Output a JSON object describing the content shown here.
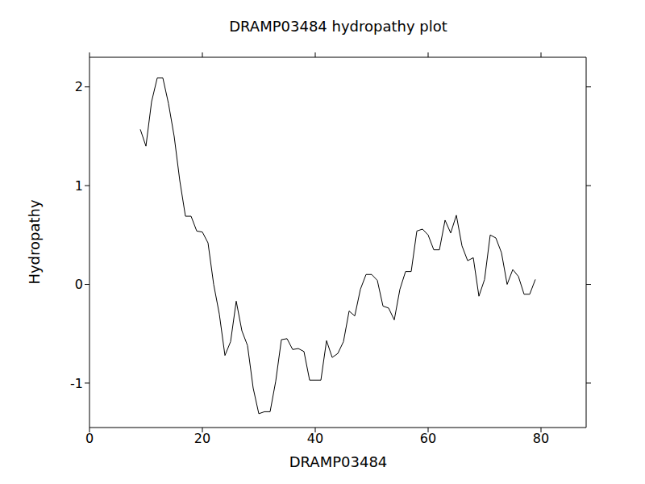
{
  "chart_data": {
    "type": "line",
    "title": "DRAMP03484 hydropathy plot",
    "xlabel": "DRAMP03484",
    "ylabel": "Hydropathy",
    "x": [
      9,
      10,
      11,
      12,
      13,
      14,
      15,
      16,
      17,
      18,
      19,
      20,
      21,
      22,
      23,
      24,
      25,
      26,
      27,
      28,
      29,
      30,
      31,
      32,
      33,
      34,
      35,
      36,
      37,
      38,
      39,
      40,
      41,
      42,
      43,
      44,
      45,
      46,
      47,
      48,
      49,
      50,
      51,
      52,
      53,
      54,
      55,
      56,
      57,
      58,
      59,
      60,
      61,
      62,
      63,
      64,
      65,
      66,
      67,
      68,
      69,
      70,
      71,
      72,
      73,
      74,
      75,
      76,
      77,
      78,
      79
    ],
    "values": [
      1.57,
      1.4,
      1.85,
      2.09,
      2.09,
      1.83,
      1.5,
      1.05,
      0.69,
      0.69,
      0.54,
      0.53,
      0.42,
      0.0,
      -0.3,
      -0.72,
      -0.58,
      -0.17,
      -0.47,
      -0.62,
      -1.05,
      -1.31,
      -1.29,
      -1.29,
      -0.98,
      -0.56,
      -0.55,
      -0.66,
      -0.65,
      -0.68,
      -0.97,
      -0.97,
      -0.97,
      -0.57,
      -0.74,
      -0.7,
      -0.58,
      -0.27,
      -0.32,
      -0.05,
      0.1,
      0.1,
      0.04,
      -0.22,
      -0.24,
      -0.36,
      -0.05,
      0.13,
      0.13,
      0.54,
      0.56,
      0.5,
      0.35,
      0.35,
      0.65,
      0.52,
      0.7,
      0.39,
      0.24,
      0.27,
      -0.12,
      0.05,
      0.5,
      0.47,
      0.32,
      0.0,
      0.15,
      0.08,
      -0.1,
      -0.1,
      0.05
    ],
    "color": "#000000",
    "xlim": [
      0,
      88
    ],
    "ylim": [
      -1.45,
      2.3
    ],
    "xticks": [
      0,
      20,
      40,
      60,
      80
    ],
    "yticks": [
      -1,
      0,
      1,
      2
    ],
    "grid": false
  }
}
